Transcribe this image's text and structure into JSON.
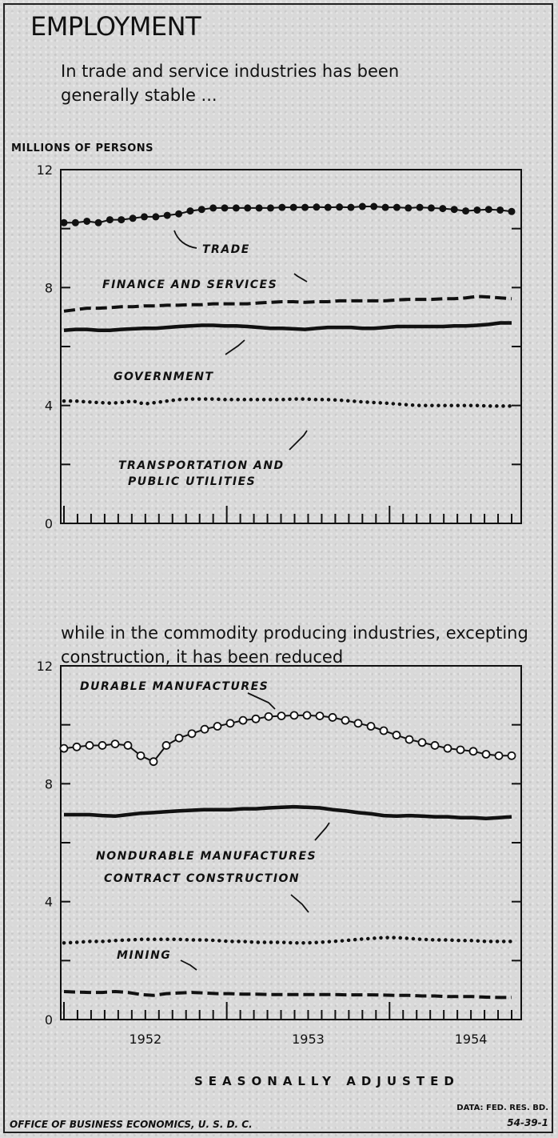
{
  "title": "EMPLOYMENT",
  "subtitle_top": "In trade and service industries has been generally stable ...",
  "subtitle_bottom": "while in the commodity producing industries, excepting construction, it has been reduced",
  "units": "MILLIONS OF PERSONS",
  "x_axis_title": "SEASONALLY ADJUSTED",
  "footer_left": "OFFICE OF BUSINESS ECONOMICS, U. S. D. C.",
  "footer_source": "DATA: FED. RES. BD.",
  "footer_code": "54-39-1",
  "chart_data": [
    {
      "type": "line",
      "ylim": [
        0,
        12
      ],
      "yticks": [
        "0",
        "4",
        "8",
        "12"
      ],
      "x_start": 1951.5,
      "x_end": 1954.25,
      "series": [
        {
          "name": "TRADE",
          "style": "filled-dots",
          "values": [
            10.2,
            10.2,
            10.25,
            10.2,
            10.3,
            10.3,
            10.35,
            10.4,
            10.4,
            10.45,
            10.5,
            10.6,
            10.65,
            10.7,
            10.7,
            10.7,
            10.7,
            10.7,
            10.7,
            10.72,
            10.72,
            10.72,
            10.73,
            10.72,
            10.73,
            10.72,
            10.75,
            10.75,
            10.72,
            10.72,
            10.7,
            10.72,
            10.7,
            10.68,
            10.65,
            10.6,
            10.63,
            10.65,
            10.63,
            10.58
          ]
        },
        {
          "name": "FINANCE AND SERVICES",
          "style": "dashed",
          "values": [
            7.2,
            7.25,
            7.3,
            7.3,
            7.32,
            7.35,
            7.35,
            7.38,
            7.38,
            7.4,
            7.4,
            7.42,
            7.42,
            7.45,
            7.45,
            7.45,
            7.45,
            7.48,
            7.5,
            7.52,
            7.52,
            7.5,
            7.52,
            7.52,
            7.55,
            7.55,
            7.55,
            7.55,
            7.55,
            7.58,
            7.6,
            7.6,
            7.6,
            7.62,
            7.62,
            7.65,
            7.7,
            7.68,
            7.65,
            7.62
          ]
        },
        {
          "name": "GOVERNMENT",
          "style": "solid",
          "values": [
            6.55,
            6.58,
            6.58,
            6.55,
            6.55,
            6.58,
            6.6,
            6.62,
            6.62,
            6.65,
            6.68,
            6.7,
            6.72,
            6.72,
            6.7,
            6.7,
            6.68,
            6.65,
            6.62,
            6.62,
            6.6,
            6.58,
            6.62,
            6.65,
            6.65,
            6.65,
            6.62,
            6.62,
            6.65,
            6.68,
            6.68,
            6.68,
            6.68,
            6.68,
            6.7,
            6.7,
            6.72,
            6.75,
            6.8,
            6.8
          ]
        },
        {
          "name": "TRANSPORTATION AND PUBLIC UTILITIES",
          "style": "small-dots",
          "values": [
            4.15,
            4.15,
            4.12,
            4.1,
            4.08,
            4.1,
            4.15,
            4.05,
            4.1,
            4.15,
            4.2,
            4.22,
            4.22,
            4.22,
            4.2,
            4.2,
            4.2,
            4.2,
            4.2,
            4.2,
            4.22,
            4.22,
            4.2,
            4.2,
            4.18,
            4.15,
            4.12,
            4.1,
            4.08,
            4.05,
            4.02,
            4.0,
            4.0,
            4.0,
            4.0,
            4.0,
            4.0,
            3.98,
            3.98,
            3.98
          ]
        }
      ]
    },
    {
      "type": "line",
      "ylim": [
        0,
        12
      ],
      "yticks": [
        "0",
        "4",
        "8",
        "12"
      ],
      "x_start": 1951.5,
      "x_end": 1954.25,
      "xticks": [
        "1952",
        "1953",
        "1954"
      ],
      "series": [
        {
          "name": "DURABLE MANUFACTURES",
          "style": "open-circles",
          "values": [
            9.2,
            9.25,
            9.3,
            9.3,
            9.35,
            9.3,
            8.95,
            8.75,
            9.3,
            9.55,
            9.7,
            9.85,
            9.95,
            10.05,
            10.15,
            10.2,
            10.28,
            10.3,
            10.32,
            10.32,
            10.3,
            10.25,
            10.15,
            10.05,
            9.95,
            9.8,
            9.65,
            9.5,
            9.4,
            9.3,
            9.2,
            9.15,
            9.1,
            9.0,
            8.95,
            8.95
          ]
        },
        {
          "name": "NONDURABLE MANUFACTURES",
          "style": "solid",
          "values": [
            6.95,
            6.95,
            6.95,
            6.92,
            6.9,
            6.95,
            7.0,
            7.02,
            7.05,
            7.08,
            7.1,
            7.12,
            7.12,
            7.12,
            7.15,
            7.15,
            7.18,
            7.2,
            7.22,
            7.2,
            7.18,
            7.12,
            7.08,
            7.02,
            6.98,
            6.92,
            6.9,
            6.92,
            6.9,
            6.88,
            6.88,
            6.85,
            6.85,
            6.82,
            6.85,
            6.88
          ]
        },
        {
          "name": "CONTRACT CONSTRUCTION",
          "style": "small-dots",
          "values": [
            2.6,
            2.62,
            2.65,
            2.65,
            2.68,
            2.7,
            2.72,
            2.72,
            2.72,
            2.72,
            2.7,
            2.7,
            2.68,
            2.65,
            2.65,
            2.62,
            2.62,
            2.62,
            2.6,
            2.6,
            2.62,
            2.65,
            2.68,
            2.72,
            2.75,
            2.78,
            2.78,
            2.75,
            2.72,
            2.7,
            2.7,
            2.68,
            2.68,
            2.65,
            2.65,
            2.65
          ]
        },
        {
          "name": "MINING",
          "style": "dashed",
          "values": [
            0.95,
            0.93,
            0.92,
            0.92,
            0.95,
            0.92,
            0.85,
            0.82,
            0.88,
            0.9,
            0.92,
            0.9,
            0.88,
            0.88,
            0.86,
            0.86,
            0.85,
            0.85,
            0.85,
            0.85,
            0.85,
            0.85,
            0.84,
            0.84,
            0.84,
            0.83,
            0.82,
            0.82,
            0.8,
            0.8,
            0.78,
            0.78,
            0.78,
            0.76,
            0.75,
            0.75
          ]
        }
      ]
    }
  ]
}
